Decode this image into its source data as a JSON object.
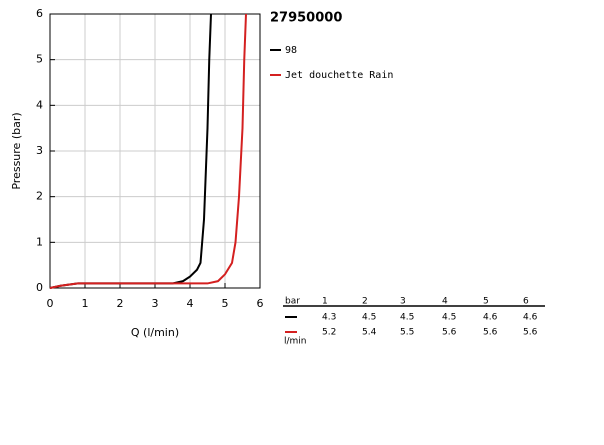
{
  "chart_data": {
    "type": "line",
    "title": "27950000",
    "xlabel": "Q (l/min)",
    "ylabel": "Pressure (bar)",
    "xlim": [
      0,
      6
    ],
    "ylim": [
      0,
      6
    ],
    "xticks": [
      0,
      1,
      2,
      3,
      4,
      5,
      6
    ],
    "yticks": [
      0,
      1,
      2,
      3,
      4,
      5,
      6
    ],
    "grid": true,
    "series": [
      {
        "name": "98",
        "color": "#000000",
        "x": [
          0,
          0.3,
          0.8,
          2,
          3.5,
          3.8,
          4.0,
          4.2,
          4.3,
          4.4,
          4.45,
          4.5,
          4.55,
          4.6
        ],
        "values": [
          0,
          0.05,
          0.1,
          0.1,
          0.1,
          0.15,
          0.25,
          0.4,
          0.55,
          1.5,
          2.5,
          3.5,
          5,
          6
        ]
      },
      {
        "name": "Jet douchette Rain",
        "color": "#d42020",
        "x": [
          0,
          0.3,
          0.8,
          2,
          4.5,
          4.8,
          5.0,
          5.2,
          5.3,
          5.4,
          5.5,
          5.55,
          5.6
        ],
        "values": [
          0,
          0.05,
          0.1,
          0.1,
          0.1,
          0.15,
          0.3,
          0.55,
          1,
          2,
          3.5,
          5,
          6
        ]
      }
    ]
  },
  "table": {
    "header": [
      "bar",
      1,
      2,
      3,
      4,
      5,
      6
    ],
    "unit": "l/min",
    "rows": [
      [
        4.3,
        4.5,
        4.5,
        4.5,
        4.6,
        4.6
      ],
      [
        5.2,
        5.4,
        5.5,
        5.6,
        5.6,
        5.6
      ]
    ]
  }
}
